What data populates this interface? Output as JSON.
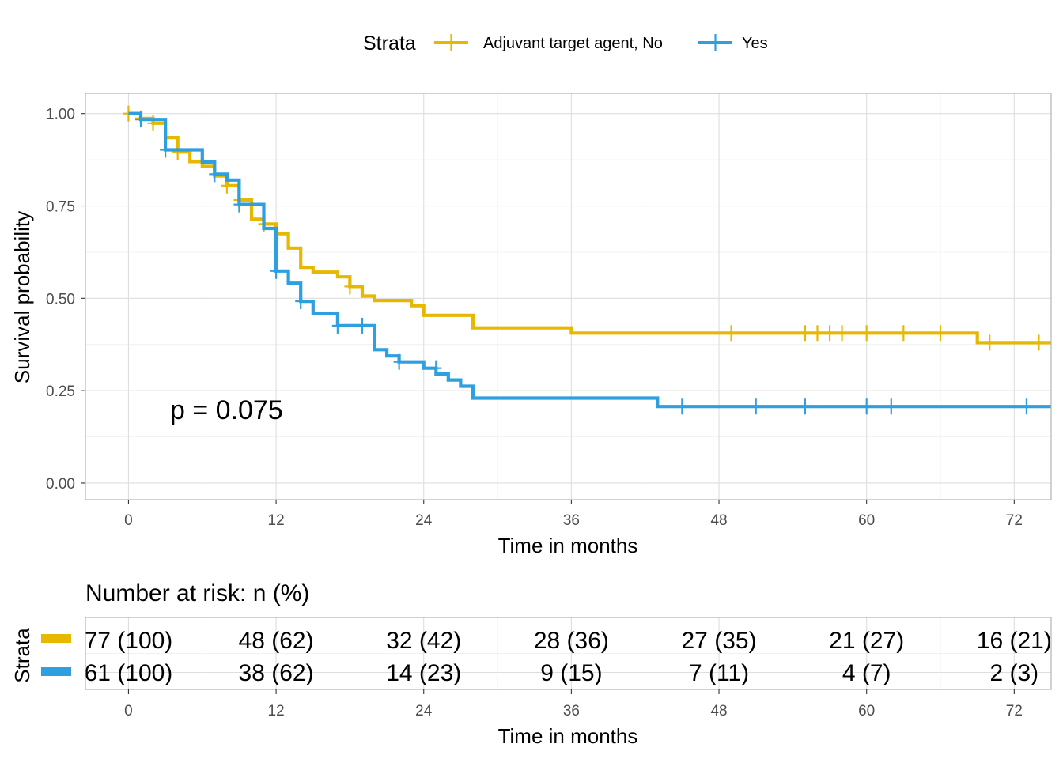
{
  "legend": {
    "title": "Strata",
    "items": [
      {
        "label": "Adjuvant target agent, No",
        "color": "#E7B800"
      },
      {
        "label": "Yes",
        "color": "#2E9FDF"
      }
    ]
  },
  "annotation": {
    "pvalue": "p = 0.075"
  },
  "chart_data": {
    "type": "line",
    "subtype": "kaplan-meier step",
    "xlabel": "Time in months",
    "ylabel": "Survival probability",
    "xlim": [
      -3.5,
      75
    ],
    "ylim": [
      -0.045,
      1.055
    ],
    "xticks": [
      0,
      12,
      24,
      36,
      48,
      60,
      72
    ],
    "yticks": [
      0,
      0.25,
      0.5,
      0.75,
      1.0
    ],
    "ytick_labels": [
      "0.00",
      "0.25",
      "0.50",
      "0.75",
      "1.00"
    ],
    "legend_position": "top",
    "series": [
      {
        "name": "Adjuvant target agent, No",
        "color": "#E7B800",
        "steps": [
          [
            0,
            1.0
          ],
          [
            1,
            0.987
          ],
          [
            2,
            0.974
          ],
          [
            3,
            0.935
          ],
          [
            4,
            0.896
          ],
          [
            5,
            0.87
          ],
          [
            6,
            0.857
          ],
          [
            7,
            0.831
          ],
          [
            8,
            0.805
          ],
          [
            9,
            0.766
          ],
          [
            10,
            0.714
          ],
          [
            11,
            0.701
          ],
          [
            12,
            0.675
          ],
          [
            13,
            0.636
          ],
          [
            14,
            0.584
          ],
          [
            15,
            0.571
          ],
          [
            17,
            0.558
          ],
          [
            18,
            0.532
          ],
          [
            19,
            0.506
          ],
          [
            20,
            0.494
          ],
          [
            23,
            0.48
          ],
          [
            24,
            0.454
          ],
          [
            28,
            0.42
          ],
          [
            36,
            0.406
          ],
          [
            69,
            0.38
          ],
          [
            75,
            0.38
          ]
        ],
        "censored": [
          [
            0,
            1.0
          ],
          [
            1,
            0.987
          ],
          [
            2,
            0.974
          ],
          [
            4,
            0.896
          ],
          [
            8,
            0.805
          ],
          [
            9,
            0.766
          ],
          [
            11,
            0.701
          ],
          [
            18,
            0.532
          ],
          [
            49,
            0.406
          ],
          [
            55,
            0.406
          ],
          [
            56,
            0.406
          ],
          [
            57,
            0.406
          ],
          [
            58,
            0.406
          ],
          [
            60,
            0.406
          ],
          [
            63,
            0.406
          ],
          [
            66,
            0.406
          ],
          [
            70,
            0.38
          ],
          [
            74,
            0.38
          ]
        ]
      },
      {
        "name": "Yes",
        "color": "#2E9FDF",
        "steps": [
          [
            0,
            1.0
          ],
          [
            1,
            0.984
          ],
          [
            3,
            0.902
          ],
          [
            6,
            0.869
          ],
          [
            7,
            0.836
          ],
          [
            8,
            0.82
          ],
          [
            9,
            0.754
          ],
          [
            11,
            0.689
          ],
          [
            12,
            0.574
          ],
          [
            13,
            0.541
          ],
          [
            14,
            0.492
          ],
          [
            15,
            0.459
          ],
          [
            17,
            0.426
          ],
          [
            20,
            0.361
          ],
          [
            21,
            0.344
          ],
          [
            22,
            0.328
          ],
          [
            24,
            0.311
          ],
          [
            25,
            0.295
          ],
          [
            26,
            0.279
          ],
          [
            27,
            0.262
          ],
          [
            28,
            0.23
          ],
          [
            43,
            0.207
          ],
          [
            75,
            0.207
          ]
        ],
        "censored": [
          [
            1,
            0.984
          ],
          [
            3,
            0.902
          ],
          [
            7,
            0.836
          ],
          [
            9,
            0.754
          ],
          [
            12,
            0.574
          ],
          [
            14,
            0.492
          ],
          [
            17,
            0.426
          ],
          [
            19,
            0.426
          ],
          [
            22,
            0.328
          ],
          [
            25,
            0.311
          ],
          [
            45,
            0.207
          ],
          [
            51,
            0.207
          ],
          [
            55,
            0.207
          ],
          [
            60,
            0.207
          ],
          [
            62,
            0.207
          ],
          [
            73,
            0.207
          ]
        ]
      }
    ]
  },
  "risk_table": {
    "title": "Number at risk: n (%)",
    "ylabel": "Strata",
    "xlabel": "Time in months",
    "times": [
      0,
      12,
      24,
      36,
      48,
      60,
      72
    ],
    "rows": [
      {
        "name": "Adjuvant target agent, No",
        "color": "#E7B800",
        "cells": [
          "77 (100)",
          "48 (62)",
          "32 (42)",
          "28 (36)",
          "27 (35)",
          "21 (27)",
          "16 (21)"
        ]
      },
      {
        "name": "Yes",
        "color": "#2E9FDF",
        "cells": [
          "61 (100)",
          "38 (62)",
          "14 (23)",
          "9 (15)",
          "7 (11)",
          "4 (7)",
          "2 (3)"
        ]
      }
    ]
  }
}
